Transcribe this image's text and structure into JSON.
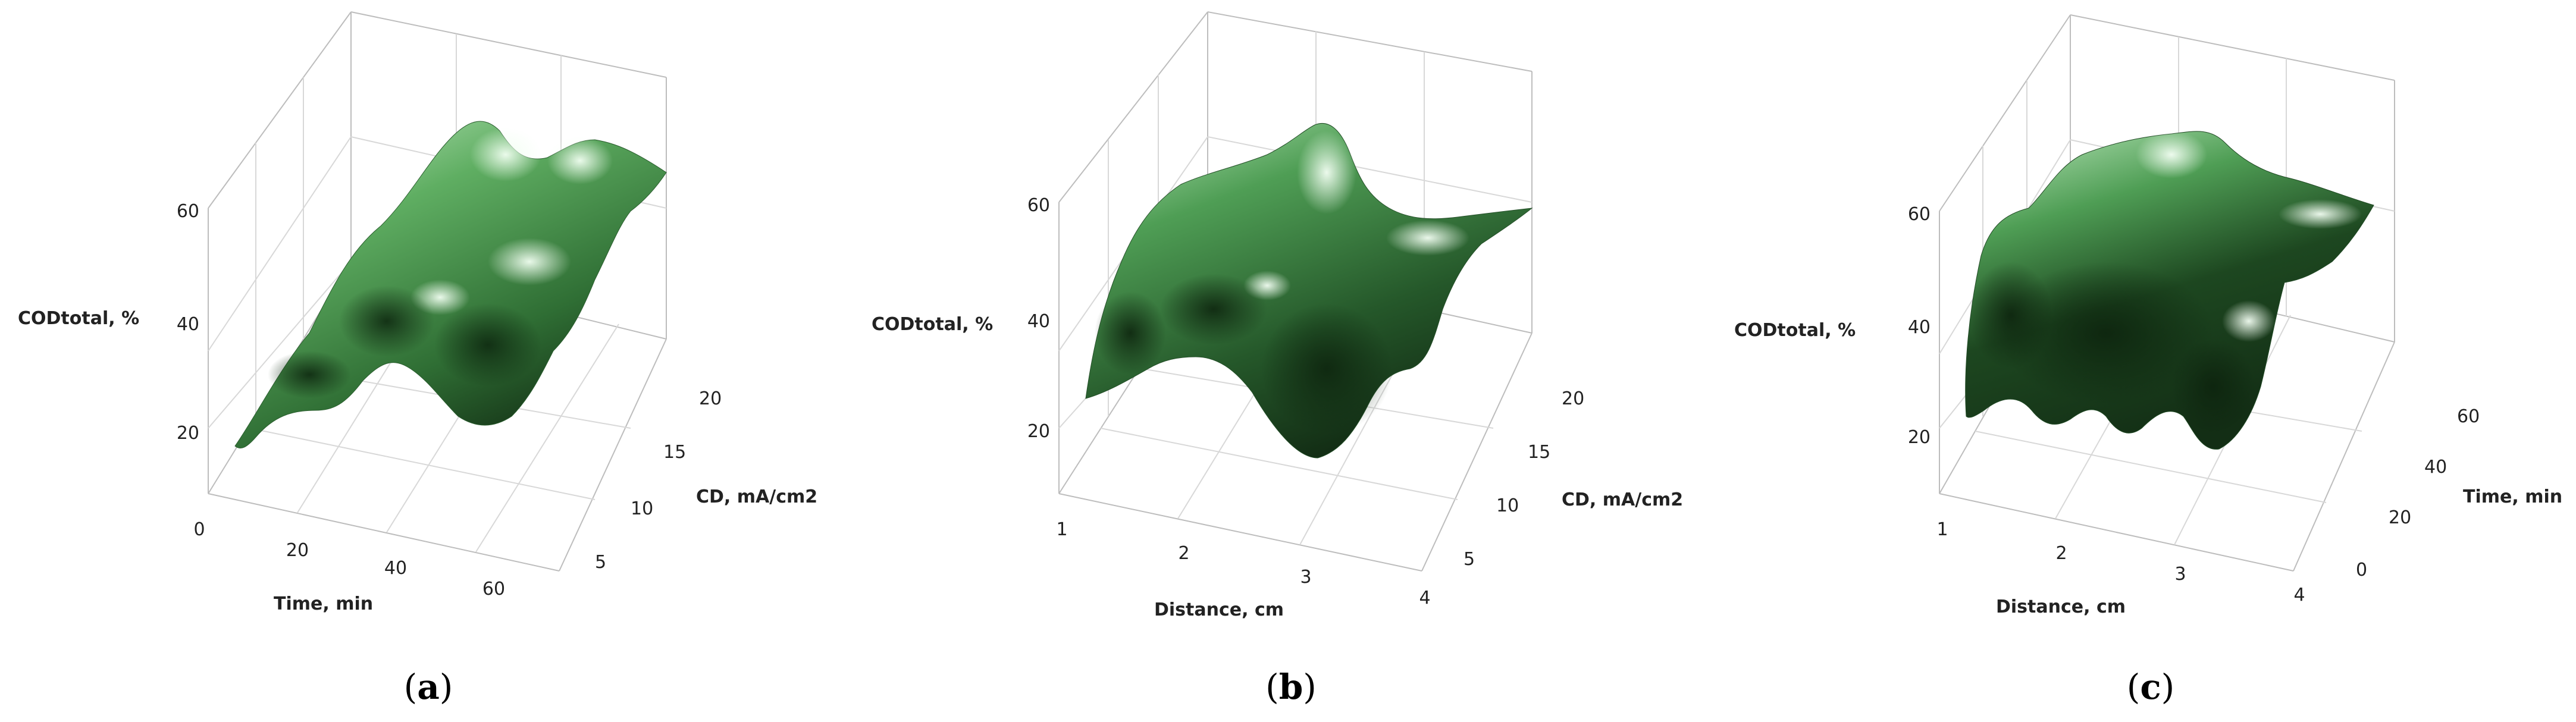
{
  "chart_data": [
    {
      "type": "surface",
      "panel": "a",
      "caption_open": "(",
      "caption_letter": "a",
      "caption_close": ")",
      "zlabel": "CODtotal, %",
      "xlabel": "Time, min",
      "ylabel": "CD, mA/cm2",
      "z_ticks": [
        "20",
        "40",
        "60"
      ],
      "x_ticks": [
        "0",
        "20",
        "40",
        "60"
      ],
      "y_ticks": [
        "5",
        "10",
        "15",
        "20"
      ],
      "z_range": [
        15,
        65
      ],
      "colors": {
        "light": "#d8f5d8",
        "mid": "#4f9a55",
        "dark": "#173a1a"
      }
    },
    {
      "type": "surface",
      "panel": "b",
      "caption_open": "(",
      "caption_letter": "b",
      "caption_close": ")",
      "zlabel": "CODtotal, %",
      "xlabel": "Distance, cm",
      "ylabel": "CD, mA/cm2",
      "z_ticks": [
        "20",
        "40",
        "60"
      ],
      "x_ticks": [
        "1",
        "2",
        "3",
        "4"
      ],
      "y_ticks": [
        "5",
        "10",
        "15",
        "20"
      ],
      "z_range": [
        15,
        65
      ],
      "colors": {
        "light": "#d8f5d8",
        "mid": "#4f9a55",
        "dark": "#173a1a"
      }
    },
    {
      "type": "surface",
      "panel": "c",
      "caption_open": "(",
      "caption_letter": "c",
      "caption_close": ")",
      "zlabel": "CODtotal, %",
      "xlabel": "Distance, cm",
      "ylabel": "Time, min",
      "z_ticks": [
        "20",
        "40",
        "60"
      ],
      "x_ticks": [
        "1",
        "2",
        "3",
        "4"
      ],
      "y_ticks": [
        "0",
        "20",
        "40",
        "60"
      ],
      "z_range": [
        15,
        65
      ],
      "colors": {
        "light": "#d8f5d8",
        "mid": "#4f9a55",
        "dark": "#173a1a"
      }
    }
  ]
}
